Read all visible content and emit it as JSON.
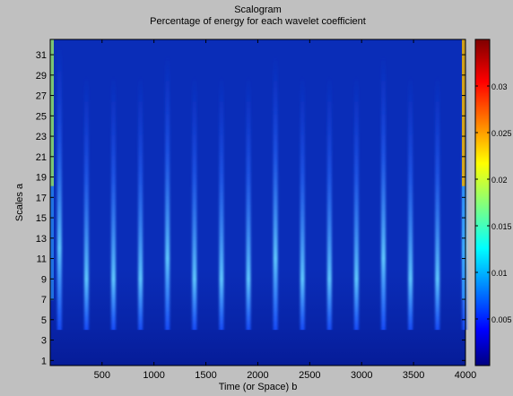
{
  "chart_data": [
    {
      "type": "heatmap",
      "title": "Scalogram",
      "subtitle": "Percentage of energy for each wavelet coefficient",
      "xlabel": "Time (or Space) b",
      "ylabel": "Scales a",
      "xlim": [
        1,
        4000
      ],
      "ylim": [
        0.5,
        32.5
      ],
      "x_ticks": [
        500,
        1000,
        1500,
        2000,
        2500,
        3000,
        3500,
        4000
      ],
      "y_ticks": [
        1,
        3,
        5,
        7,
        9,
        11,
        13,
        15,
        17,
        19,
        21,
        23,
        25,
        27,
        29,
        31
      ],
      "colormap": "jet",
      "background_value": 0.001,
      "ridges": {
        "x": [
          90,
          350,
          610,
          870,
          1130,
          1390,
          1650,
          1910,
          2170,
          2430,
          2690,
          2950,
          3210,
          3470,
          3730,
          3990
        ],
        "top_scale": [
          12,
          9,
          9,
          9,
          11,
          9,
          9,
          9,
          11,
          9,
          9,
          9,
          11,
          9,
          9,
          12
        ],
        "peak_value": 0.008
      },
      "edge_effect": {
        "x": [
          1,
          4000
        ],
        "value": 0.02
      }
    },
    {
      "type": "colorbar",
      "colormap": "jet",
      "range": [
        0,
        0.035
      ],
      "ticks": [
        0.005,
        0.01,
        0.015,
        0.02,
        0.025,
        0.03
      ],
      "tick_labels": [
        "0.005",
        "0.01",
        "0.015",
        "0.02",
        "0.025",
        "0.03"
      ]
    }
  ],
  "colors": {
    "figure_background": "#c0c0c0",
    "jet_dark_blue": "#00007f",
    "jet_blue": "#0000ff",
    "jet_cyan": "#00ffff",
    "jet_yellow": "#ffff00",
    "jet_red": "#ff0000",
    "jet_dark_red": "#7f0000"
  }
}
